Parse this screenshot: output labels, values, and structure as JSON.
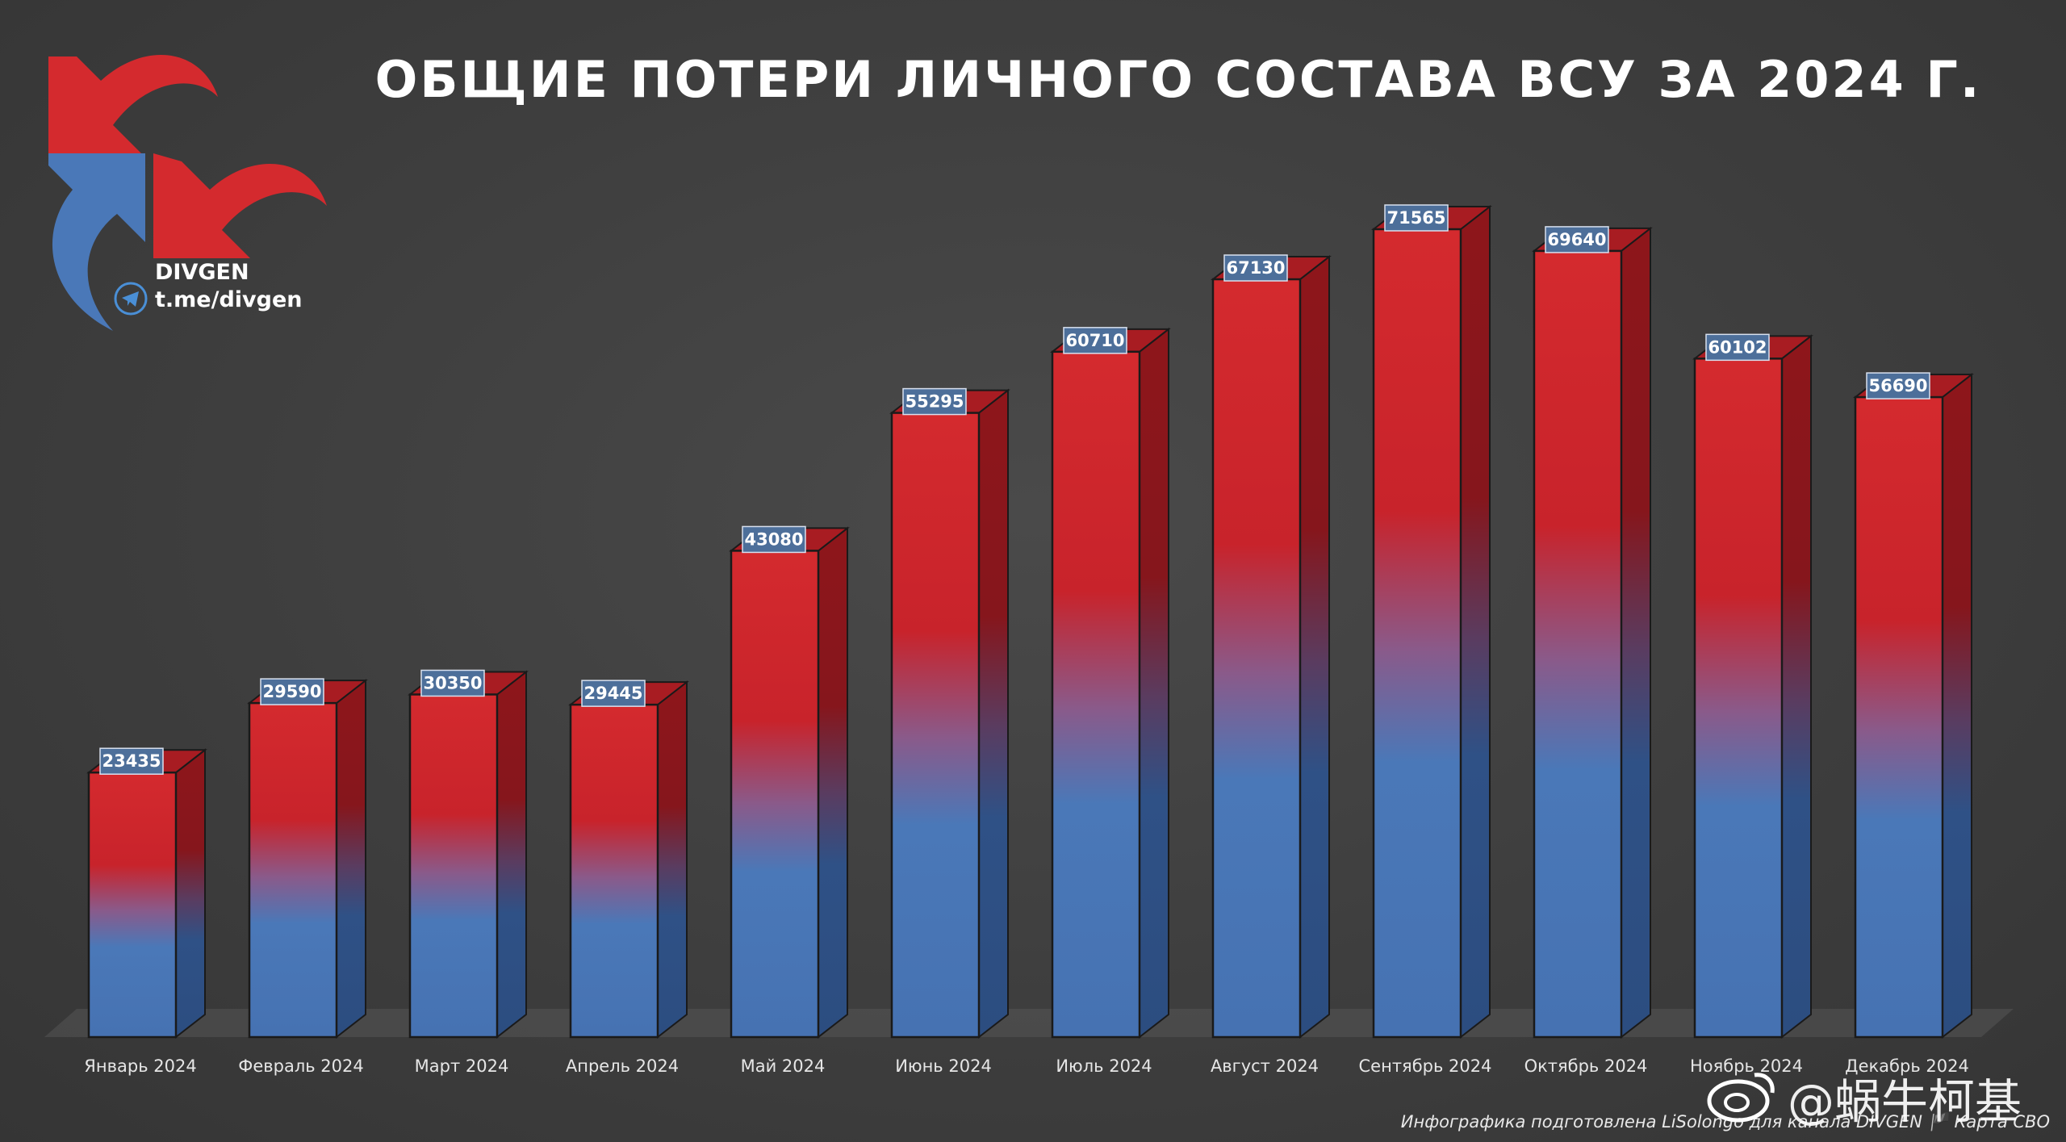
{
  "header": {
    "title": "ОБЩИЕ ПОТЕРИ ЛИЧНОГО СОСТАВА ВСУ ЗА 2024 Г."
  },
  "logo": {
    "name": "DIVGEN",
    "link": "t.me/divgen",
    "icon": "divgen-arrows-logo"
  },
  "footer": {
    "credit": "Инфографика подготовлена LiSolongo для канала DIVGEN 🏴 Карта СВО",
    "watermark": "@蜗牛柯基"
  },
  "colors": {
    "bar_top": "#d42a2e",
    "bar_bottom": "#4a78b8",
    "background": "#3e3e3e",
    "label_box": "#4d6f9a"
  },
  "chart_data": {
    "type": "bar",
    "title": "ОБЩИЕ ПОТЕРИ ЛИЧНОГО СОСТАВА ВСУ ЗА 2024 Г.",
    "categories": [
      "Январь 2024",
      "Февраль 2024",
      "Март 2024",
      "Апрель 2024",
      "Май 2024",
      "Июнь 2024",
      "Июль 2024",
      "Август 2024",
      "Сентябрь 2024",
      "Октябрь 2024",
      "Ноябрь 2024",
      "Декабрь 2024"
    ],
    "values": [
      23435,
      29590,
      30350,
      29445,
      43080,
      55295,
      60710,
      67130,
      71565,
      69640,
      60102,
      56690
    ],
    "ylim": [
      0,
      71565
    ],
    "grid": false,
    "legend": "none",
    "style": "3d-gradient"
  }
}
